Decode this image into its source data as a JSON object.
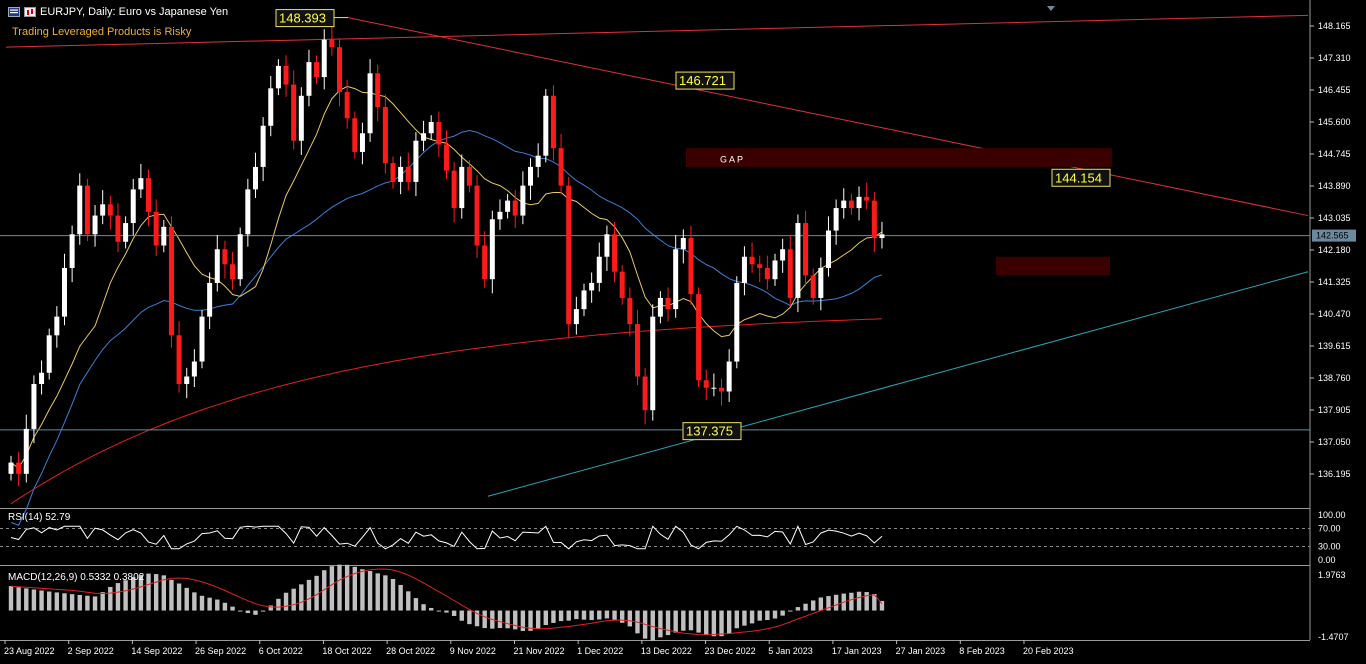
{
  "header": {
    "symbol_line": "EURJPY, Daily:  Euro vs Japanese Yen",
    "warning": "Trading Leveraged Products is Risky"
  },
  "colors": {
    "background": "#000000",
    "bull": "#ffffff",
    "bear": "#ff1a1a",
    "ma_fast": "#e8c860",
    "ma_mid": "#3a7fd9",
    "ma_slow": "#e02020",
    "trendline_red": "#e0303a",
    "trendline_blue": "#2aa7b8",
    "annotation_bg": "#111111",
    "annotation_border": "#f0e060",
    "annotation_text": "#ffff40",
    "gap_box": "#3a0000"
  },
  "price_axis": {
    "ticks": [
      "148.165",
      "147.310",
      "146.455",
      "145.600",
      "144.745",
      "143.890",
      "143.035",
      "142.180",
      "141.325",
      "140.470",
      "139.615",
      "138.760",
      "137.905",
      "137.050",
      "136.195"
    ],
    "current_price": "142.565"
  },
  "date_axis": {
    "labels": [
      "23 Aug 2022",
      "2 Sep 2022",
      "14 Sep 2022",
      "26 Sep 2022",
      "6 Oct 2022",
      "18 Oct 2022",
      "28 Oct 2022",
      "9 Nov 2022",
      "21 Nov 2022",
      "1 Dec 2022",
      "13 Dec 2022",
      "23 Dec 2022",
      "5 Jan 2023",
      "17 Jan 2023",
      "27 Jan 2023",
      "8 Feb 2023",
      "20 Feb 2023"
    ]
  },
  "annotations": {
    "high_1": "148.393",
    "high_2": "146.721",
    "low_1": "137.375",
    "high_3": "144.154",
    "gap_label": "G A P"
  },
  "rsi": {
    "label": "RSI(14) 52.79",
    "ticks": [
      "100.00",
      "70.00",
      "30.00",
      "0.00"
    ]
  },
  "macd": {
    "label": "MACD(12,26,9) 0.5332 0.3802",
    "ticks": [
      "1.9763",
      "-1.4707"
    ]
  },
  "chart_data": {
    "type": "candlestick",
    "symbol": "EURJPY",
    "timeframe": "Daily",
    "ylim": [
      135.6,
      148.6
    ],
    "x_dates": [
      "23 Aug 2022",
      "2 Sep 2022",
      "14 Sep 2022",
      "26 Sep 2022",
      "6 Oct 2022",
      "18 Oct 2022",
      "28 Oct 2022",
      "9 Nov 2022",
      "21 Nov 2022",
      "1 Dec 2022",
      "13 Dec 2022",
      "23 Dec 2022",
      "5 Jan 2023",
      "17 Jan 2023",
      "27 Jan 2023",
      "8 Feb 2023",
      "20 Feb 2023"
    ],
    "closes": [
      136.5,
      136.2,
      137.4,
      138.6,
      138.9,
      139.9,
      140.4,
      141.7,
      142.6,
      143.9,
      142.6,
      143.1,
      143.4,
      143.1,
      142.4,
      142.9,
      143.8,
      144.1,
      143.2,
      142.3,
      142.8,
      139.9,
      138.6,
      138.8,
      139.2,
      140.4,
      141.3,
      142.2,
      141.8,
      141.4,
      142.6,
      143.8,
      144.4,
      145.5,
      146.5,
      147.1,
      146.6,
      145.1,
      146.3,
      147.2,
      146.8,
      147.8,
      147.6,
      146.4,
      145.7,
      144.8,
      145.3,
      146.9,
      146.0,
      144.5,
      144.0,
      144.4,
      144.0,
      145.1,
      145.3,
      145.6,
      145.0,
      144.3,
      143.3,
      144.4,
      143.9,
      142.3,
      141.4,
      143.0,
      143.2,
      143.5,
      143.1,
      143.9,
      144.4,
      144.7,
      146.3,
      144.9,
      143.9,
      140.2,
      140.6,
      141.1,
      141.3,
      142.0,
      142.6,
      141.6,
      140.9,
      140.2,
      138.8,
      137.9,
      140.4,
      140.9,
      140.6,
      142.2,
      142.5,
      141.0,
      138.7,
      138.5,
      138.5,
      138.4,
      139.2,
      141.3,
      142.0,
      141.8,
      141.7,
      141.4,
      141.9,
      142.2,
      140.9,
      142.9,
      141.5,
      140.9,
      141.7,
      142.7,
      143.3,
      143.5,
      143.3,
      143.6,
      143.5,
      142.5,
      142.6
    ],
    "ma_fast_last": 142.1,
    "ma_mid_last": 141.8,
    "ma_slow_last": 140.6,
    "rsi_last": 52.79,
    "macd_last": 0.5332,
    "signal_last": 0.3802
  }
}
